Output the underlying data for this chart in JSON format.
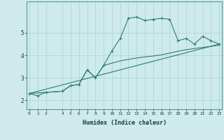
{
  "xlabel": "Humidex (Indice chaleur)",
  "background_color": "#ceeaea",
  "line_color": "#2d7d74",
  "grid_color": "#aad4d4",
  "spine_color": "#4a9090",
  "x_ticks": [
    0,
    1,
    2,
    4,
    5,
    6,
    7,
    8,
    9,
    10,
    11,
    12,
    13,
    14,
    15,
    16,
    17,
    18,
    19,
    20,
    21,
    22,
    23
  ],
  "y_ticks": [
    2,
    3,
    4,
    5
  ],
  "ylim": [
    1.6,
    6.4
  ],
  "xlim": [
    -0.3,
    23.3
  ],
  "series1_x": [
    0,
    1,
    2,
    4,
    5,
    6,
    7,
    8,
    9,
    10,
    11,
    12,
    13,
    14,
    15,
    16,
    17,
    18,
    19,
    20,
    21,
    22,
    23
  ],
  "series1_y": [
    2.3,
    2.2,
    2.35,
    2.4,
    2.65,
    2.7,
    3.35,
    3.0,
    3.55,
    4.2,
    4.75,
    5.65,
    5.7,
    5.55,
    5.6,
    5.65,
    5.6,
    4.65,
    4.75,
    4.5,
    4.85,
    4.65,
    4.5
  ],
  "series2_x": [
    0,
    23
  ],
  "series2_y": [
    2.3,
    4.5
  ],
  "series3_x": [
    0,
    4,
    5,
    6,
    7,
    8,
    9,
    10,
    11,
    12,
    13,
    14,
    15,
    16,
    17,
    18,
    19,
    20,
    21,
    22,
    23
  ],
  "series3_y": [
    2.3,
    2.4,
    2.65,
    2.7,
    3.35,
    3.0,
    3.55,
    3.65,
    3.75,
    3.82,
    3.88,
    3.93,
    3.97,
    4.02,
    4.1,
    4.18,
    4.25,
    4.3,
    4.35,
    4.4,
    4.45
  ]
}
